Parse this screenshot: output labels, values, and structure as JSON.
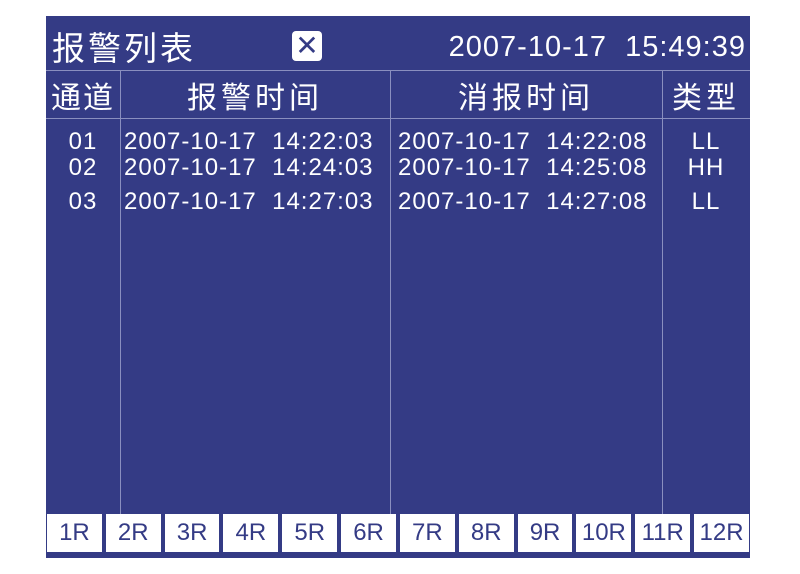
{
  "header": {
    "title": "报警列表",
    "close_icon": "close-x-icon",
    "datetime": "2007-10-17  15:49:39"
  },
  "table": {
    "columns": [
      "通道",
      "报警时间",
      "消报时间",
      "类型"
    ],
    "rows": [
      {
        "channel": "01",
        "alarm_time": "2007-10-17  14:22:03",
        "clear_time": "2007-10-17  14:22:08",
        "type": "LL"
      },
      {
        "channel": "02",
        "alarm_time": "2007-10-17  14:24:03",
        "clear_time": "2007-10-17  14:25:08",
        "type": "HH"
      },
      {
        "channel": "03",
        "alarm_time": "2007-10-17  14:27:03",
        "clear_time": "2007-10-17  14:27:08",
        "type": "LL"
      }
    ]
  },
  "buttons": [
    "1R",
    "2R",
    "3R",
    "4R",
    "5R",
    "6R",
    "7R",
    "8R",
    "9R",
    "10R",
    "11R",
    "12R"
  ],
  "colors": {
    "background": "#343b85",
    "text": "#ffffff"
  }
}
